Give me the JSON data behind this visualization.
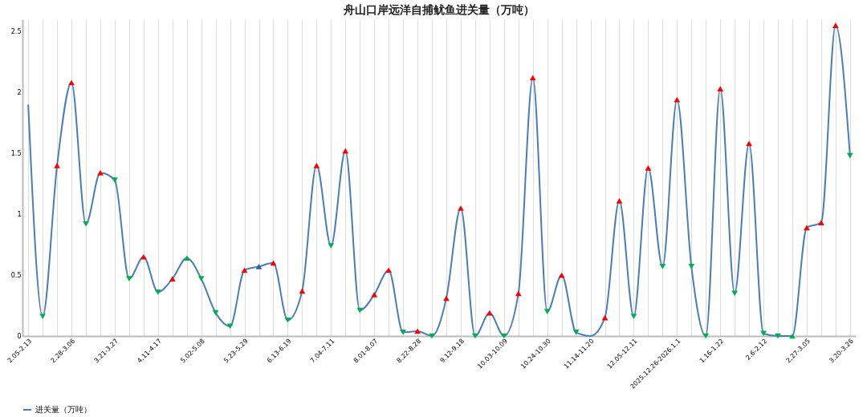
{
  "chart_data": {
    "type": "line",
    "title": "舟山口岸远洋自捕鱿鱼进关量（万吨）",
    "categories": [
      "2.05-2.13",
      null,
      null,
      "2.28-3.06",
      null,
      null,
      "3.21-3.27",
      null,
      null,
      "4.11-4.17",
      null,
      null,
      "5.02-5.08",
      null,
      null,
      "5.23-5.29",
      null,
      null,
      "6.13-6.19",
      null,
      null,
      "7.04-7.11",
      null,
      null,
      "8.01-8.07",
      null,
      null,
      "8.22-8.28",
      null,
      null,
      "9.12-9.18",
      null,
      null,
      "10.03-10.09",
      null,
      null,
      "10.24-10.30",
      null,
      null,
      "11.14-11.20",
      null,
      null,
      "12.05-12.11",
      null,
      null,
      "2025.12.26-2026.1.1",
      null,
      null,
      "1.16-1.22",
      null,
      null,
      "2.6-2.12",
      null,
      null,
      "2.27-3.05",
      null,
      null,
      "3.20-3.26"
    ],
    "series": [
      {
        "name": "进关量（万吨）",
        "color": "#4a7ebb",
        "values": [
          1.9,
          0.16,
          1.4,
          2.08,
          0.92,
          1.34,
          1.28,
          0.47,
          0.65,
          0.36,
          0.47,
          0.64,
          0.47,
          0.19,
          0.08,
          0.54,
          0.57,
          0.6,
          0.13,
          0.37,
          1.4,
          0.74,
          1.52,
          0.21,
          0.34,
          0.54,
          0.03,
          0.04,
          0,
          0.31,
          1.05,
          0,
          0.19,
          0,
          0.35,
          2.12,
          0.2,
          0.5,
          0.03,
          0,
          0.15,
          1.11,
          0.16,
          1.38,
          0.57,
          1.94,
          0.57,
          0,
          2.03,
          0.35,
          1.58,
          0.02,
          0,
          0,
          0.89,
          0.93,
          2.55,
          1.48
        ],
        "colors": [
          null,
          "#00b050",
          "#ff0000",
          "#ff0000",
          "#00b050",
          "#ff0000",
          "#00b050",
          "#00b050",
          "#ff0000",
          "#00b050",
          "#ff0000",
          "#00b050",
          "#00b050",
          "#00b050",
          "#00b050",
          "#ff0000",
          "#2e5f9e",
          "#ff0000",
          "#00b050",
          "#ff0000",
          "#ff0000",
          "#00b050",
          "#ff0000",
          "#00b050",
          "#ff0000",
          "#ff0000",
          "#00b050",
          "#ff0000",
          "#00b050",
          "#ff0000",
          "#ff0000",
          "#00b050",
          "#ff0000",
          "#00b050",
          "#ff0000",
          "#ff0000",
          "#00b050",
          "#ff0000",
          "#00b050",
          null,
          "#ff0000",
          "#ff0000",
          "#00b050",
          "#ff0000",
          "#00b050",
          "#ff0000",
          "#00b050",
          "#00b050",
          "#ff0000",
          "#00b050",
          "#ff0000",
          "#00b050",
          "#00b050",
          "#00b050",
          "#ff0000",
          "#ff0000",
          "#ff0000",
          "#00b050"
        ]
      }
    ],
    "ylim": [
      0,
      2.6
    ],
    "yticks": [
      0,
      0.5,
      1,
      1.5,
      2,
      2.5
    ],
    "grid": "x",
    "legend": "bottom",
    "marker": "triangle",
    "line_style": "solid"
  }
}
